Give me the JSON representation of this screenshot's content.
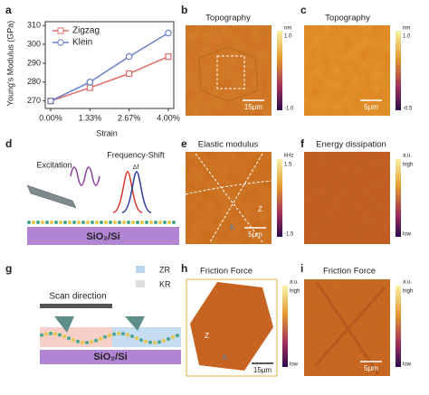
{
  "chart_data": {
    "type": "line",
    "panel_letter": "a",
    "xlabel": "Strain",
    "ylabel": "Young's Modulus (GPa)",
    "categories": [
      "0.00%",
      "1.33%",
      "2.67%",
      "4.00%"
    ],
    "series": [
      {
        "name": "Zigzag",
        "color": "#e06b6b",
        "values": [
          270,
          277,
          284.5,
          293.5
        ]
      },
      {
        "name": "Klein",
        "color": "#6a7fc9",
        "values": [
          270,
          280,
          293.5,
          306
        ]
      }
    ],
    "ylim": [
      266,
      312
    ],
    "yticks": [
      270,
      280,
      290,
      300,
      310
    ],
    "legend": "upper-left",
    "grid": false
  },
  "panels": {
    "b": {
      "letter": "b",
      "title": "Topography",
      "unit": "nm",
      "cbar_top": "1.0",
      "cbar_bottom": "-1.0",
      "scale_bar": "15μm"
    },
    "c": {
      "letter": "c",
      "title": "Topography",
      "unit": "nm",
      "cbar_top": "1.0",
      "cbar_bottom": "-0.5",
      "scale_bar": "5μm"
    },
    "d": {
      "letter": "d",
      "excitation": "Excitation",
      "frequency_shift": "Frequency-Shift",
      "delta": "Δf",
      "substrate": "SiO₂/Si"
    },
    "e": {
      "letter": "e",
      "title": "Elastic modulus",
      "unit": "kHz",
      "cbar_top": "1.5",
      "cbar_bottom": "-1.5",
      "scale_bar": "5μm",
      "zone_z": "Z",
      "zone_k": "K"
    },
    "f": {
      "letter": "f",
      "title": "Energy dissipation",
      "unit": "a.u.",
      "cbar_top": "high",
      "cbar_bottom": "low"
    },
    "g": {
      "letter": "g",
      "legend_zr": "ZR",
      "legend_kr": "KR",
      "scan": "Scan direction",
      "substrate": "SiO₂/Si"
    },
    "h": {
      "letter": "h",
      "title": "Friction Force",
      "unit": "a.u.",
      "cbar_top": "high",
      "cbar_bottom": "low",
      "scale_bar": "15μm",
      "zone_z": "Z",
      "zone_k": "K"
    },
    "i": {
      "letter": "i",
      "title": "Friction Force",
      "unit": "a.u.",
      "cbar_top": "high",
      "cbar_bottom": "low",
      "scale_bar": "5μm"
    }
  }
}
